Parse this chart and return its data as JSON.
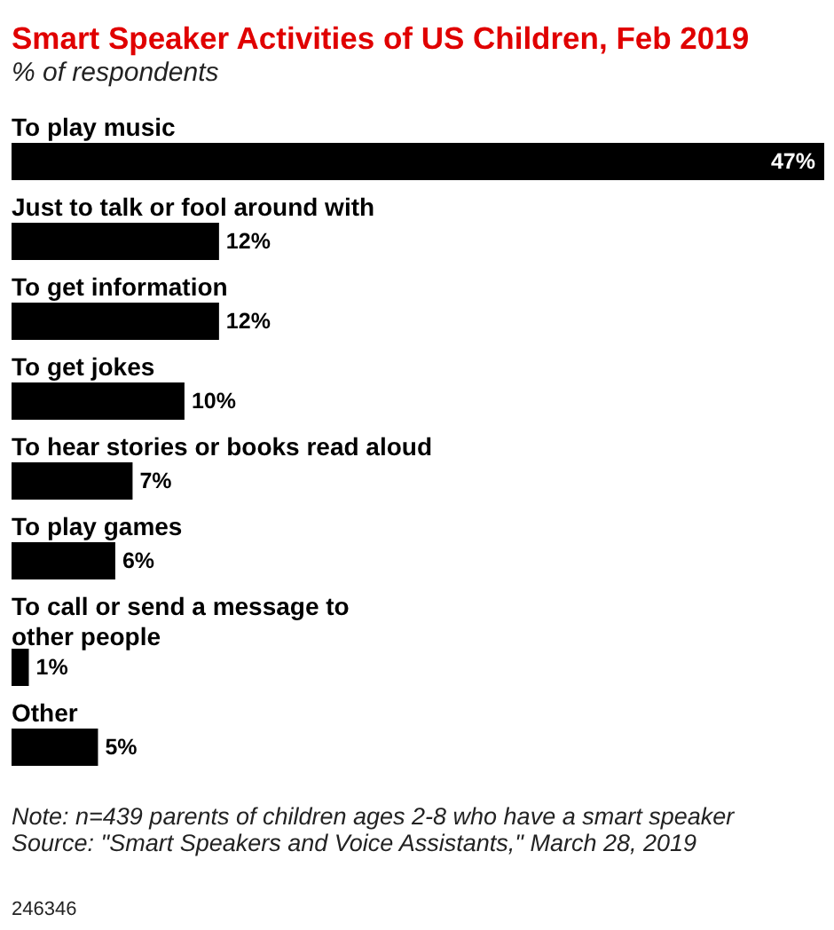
{
  "chart_data": {
    "type": "bar",
    "orientation": "horizontal",
    "title": "Smart Speaker Activities of US Children, Feb 2019",
    "subtitle": "% of respondents",
    "categories": [
      "To play music",
      "Just to talk or fool around with",
      "To get information",
      "To get jokes",
      "To hear stories or books read aloud",
      "To play games",
      "To call or send a message to\nother people",
      "Other"
    ],
    "values": [
      47,
      12,
      12,
      10,
      7,
      6,
      1,
      5
    ],
    "color": "#000000",
    "value_labels": [
      "47%",
      "12%",
      "12%",
      "10%",
      "7%",
      "6%",
      "1%",
      "5%"
    ],
    "annotations": [
      "Note: n=439 parents of children ages 2-8 who have a smart speaker",
      "Source: \"Smart Speakers and Voice Assistants,\" March 28, 2019",
      "246346"
    ]
  }
}
